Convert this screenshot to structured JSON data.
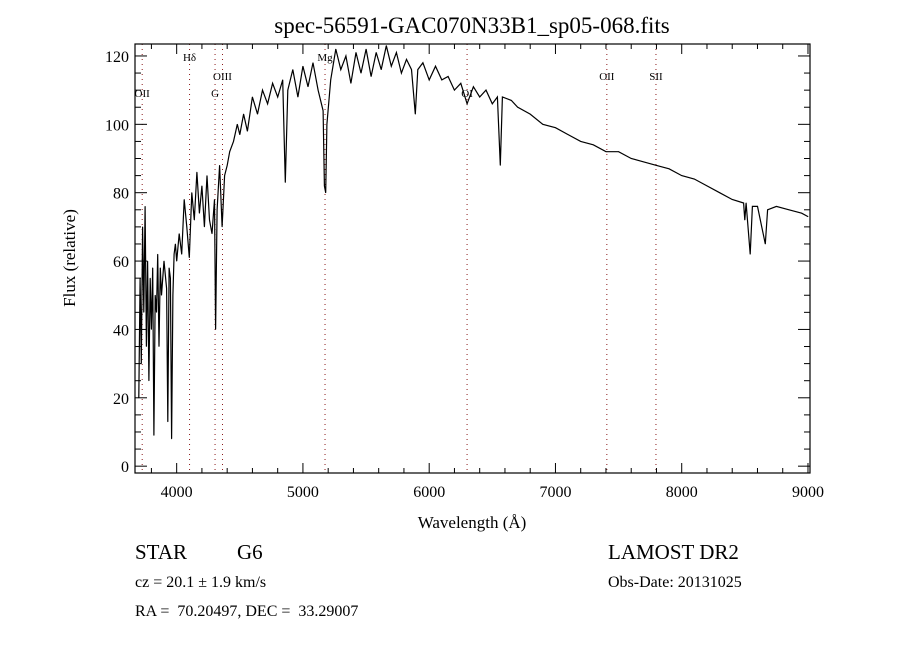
{
  "chart_data": {
    "type": "line",
    "title": "spec-56591-GAC070N33B1_sp05-068.fits",
    "xlabel": "Wavelength (Å)",
    "ylabel": "Flux (relative)",
    "xlim": [
      3670,
      9016
    ],
    "ylim": [
      -2,
      123.5
    ],
    "xticks": [
      4000,
      5000,
      6000,
      7000,
      8000,
      9000
    ],
    "yticks": [
      0,
      20,
      40,
      60,
      80,
      100,
      120
    ],
    "grid": false,
    "line_color": "#000000",
    "marker_color": "#8b1a1a",
    "lines": [
      {
        "label": "OII",
        "wavelength": 3727,
        "label_flux": 108
      },
      {
        "label": "Hδ",
        "wavelength": 4102,
        "label_flux": 118.5
      },
      {
        "label": "G",
        "wavelength": 4304,
        "label_flux": 108
      },
      {
        "label": "OIII",
        "wavelength": 4363,
        "label_flux": 113
      },
      {
        "label": "Mg",
        "wavelength": 5175,
        "label_flux": 118.5
      },
      {
        "label": "OI",
        "wavelength": 6300,
        "label_flux": 108
      },
      {
        "label": "OII",
        "wavelength": 7407,
        "label_flux": 113
      },
      {
        "label": "SII",
        "wavelength": 7796,
        "label_flux": 113
      }
    ],
    "series": [
      {
        "name": "spectrum",
        "points": [
          [
            3700,
            20
          ],
          [
            3710,
            55
          ],
          [
            3720,
            30
          ],
          [
            3730,
            70
          ],
          [
            3740,
            45
          ],
          [
            3750,
            76
          ],
          [
            3760,
            35
          ],
          [
            3770,
            60
          ],
          [
            3780,
            25
          ],
          [
            3790,
            55
          ],
          [
            3800,
            40
          ],
          [
            3810,
            58
          ],
          [
            3820,
            9
          ],
          [
            3830,
            50
          ],
          [
            3840,
            45
          ],
          [
            3850,
            62
          ],
          [
            3860,
            35
          ],
          [
            3870,
            58
          ],
          [
            3880,
            50
          ],
          [
            3900,
            60
          ],
          [
            3920,
            52
          ],
          [
            3930,
            13
          ],
          [
            3940,
            58
          ],
          [
            3950,
            55
          ],
          [
            3960,
            8
          ],
          [
            3970,
            50
          ],
          [
            3980,
            62
          ],
          [
            3990,
            65
          ],
          [
            4000,
            60
          ],
          [
            4020,
            68
          ],
          [
            4040,
            62
          ],
          [
            4060,
            78
          ],
          [
            4080,
            70
          ],
          [
            4100,
            61
          ],
          [
            4120,
            80
          ],
          [
            4140,
            72
          ],
          [
            4160,
            86
          ],
          [
            4180,
            74
          ],
          [
            4200,
            82
          ],
          [
            4220,
            70
          ],
          [
            4240,
            85
          ],
          [
            4260,
            72
          ],
          [
            4280,
            68
          ],
          [
            4300,
            78
          ],
          [
            4308,
            40
          ],
          [
            4320,
            75
          ],
          [
            4340,
            88
          ],
          [
            4360,
            70
          ],
          [
            4380,
            85
          ],
          [
            4400,
            88
          ],
          [
            4420,
            92
          ],
          [
            4450,
            95
          ],
          [
            4480,
            100
          ],
          [
            4500,
            97
          ],
          [
            4530,
            103
          ],
          [
            4560,
            98
          ],
          [
            4600,
            108
          ],
          [
            4640,
            103
          ],
          [
            4680,
            110
          ],
          [
            4720,
            106
          ],
          [
            4760,
            112
          ],
          [
            4800,
            108
          ],
          [
            4840,
            113
          ],
          [
            4860,
            83
          ],
          [
            4880,
            110
          ],
          [
            4920,
            116
          ],
          [
            4960,
            108
          ],
          [
            5000,
            117
          ],
          [
            5040,
            111
          ],
          [
            5080,
            118
          ],
          [
            5120,
            110
          ],
          [
            5160,
            104
          ],
          [
            5170,
            82
          ],
          [
            5180,
            80
          ],
          [
            5190,
            100
          ],
          [
            5220,
            113
          ],
          [
            5260,
            122
          ],
          [
            5300,
            116
          ],
          [
            5340,
            120
          ],
          [
            5380,
            112
          ],
          [
            5420,
            121
          ],
          [
            5460,
            115
          ],
          [
            5500,
            122
          ],
          [
            5540,
            114
          ],
          [
            5580,
            121
          ],
          [
            5620,
            116
          ],
          [
            5660,
            123
          ],
          [
            5700,
            117
          ],
          [
            5740,
            121
          ],
          [
            5780,
            115
          ],
          [
            5820,
            119
          ],
          [
            5860,
            116
          ],
          [
            5890,
            103
          ],
          [
            5910,
            116
          ],
          [
            5950,
            118
          ],
          [
            6000,
            113
          ],
          [
            6050,
            117
          ],
          [
            6100,
            113
          ],
          [
            6150,
            114
          ],
          [
            6200,
            110
          ],
          [
            6250,
            112
          ],
          [
            6300,
            106
          ],
          [
            6350,
            111
          ],
          [
            6400,
            108
          ],
          [
            6450,
            110
          ],
          [
            6500,
            106
          ],
          [
            6540,
            108
          ],
          [
            6563,
            88
          ],
          [
            6580,
            108
          ],
          [
            6650,
            107
          ],
          [
            6700,
            105
          ],
          [
            6800,
            103
          ],
          [
            6900,
            100
          ],
          [
            7000,
            99
          ],
          [
            7100,
            97
          ],
          [
            7200,
            95
          ],
          [
            7300,
            94
          ],
          [
            7400,
            92
          ],
          [
            7500,
            92
          ],
          [
            7600,
            90
          ],
          [
            7700,
            89
          ],
          [
            7800,
            88
          ],
          [
            7900,
            87
          ],
          [
            8000,
            85
          ],
          [
            8100,
            84
          ],
          [
            8200,
            82
          ],
          [
            8300,
            80
          ],
          [
            8400,
            78
          ],
          [
            8490,
            77
          ],
          [
            8500,
            72
          ],
          [
            8510,
            77
          ],
          [
            8542,
            62
          ],
          [
            8560,
            76
          ],
          [
            8600,
            76
          ],
          [
            8662,
            65
          ],
          [
            8680,
            75
          ],
          [
            8750,
            76
          ],
          [
            8850,
            75
          ],
          [
            8950,
            74
          ],
          [
            9000,
            73
          ]
        ]
      }
    ]
  },
  "info": {
    "object_class": "STAR",
    "subclass": "G6",
    "survey": "LAMOST DR2",
    "redshift": "cz = 20.1 ± 1.9 km/s",
    "obs_date": "Obs-Date: 20131025",
    "coords": "RA =  70.20497, DEC =  33.29007"
  }
}
